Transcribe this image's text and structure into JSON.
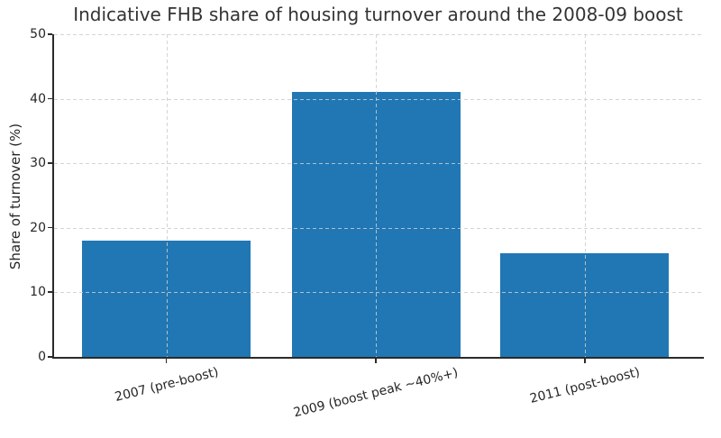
{
  "chart_data": {
    "type": "bar",
    "title": "Indicative FHB share of housing turnover around the 2008-09 boost",
    "categories": [
      "2007 (pre-boost)",
      "2009 (boost peak ~40%+)",
      "2011 (post-boost)"
    ],
    "values": [
      18,
      41,
      16
    ],
    "xlabel": "",
    "ylabel": "Share of turnover (%)",
    "ylim": [
      0,
      50
    ],
    "yticks": [
      0,
      10,
      20,
      30,
      40,
      50
    ],
    "legend": "none",
    "grid": "dashed gridlines on both axes, drawn above bars",
    "spines": "left and bottom only",
    "x_tick_label_rotation_deg": 14,
    "colors": {
      "bar": "#2077b4",
      "grid": "#cccccc",
      "spine": "#2b2b2b",
      "title_text": "#333333",
      "tick_text": "#262626",
      "background": "#ffffff"
    }
  }
}
